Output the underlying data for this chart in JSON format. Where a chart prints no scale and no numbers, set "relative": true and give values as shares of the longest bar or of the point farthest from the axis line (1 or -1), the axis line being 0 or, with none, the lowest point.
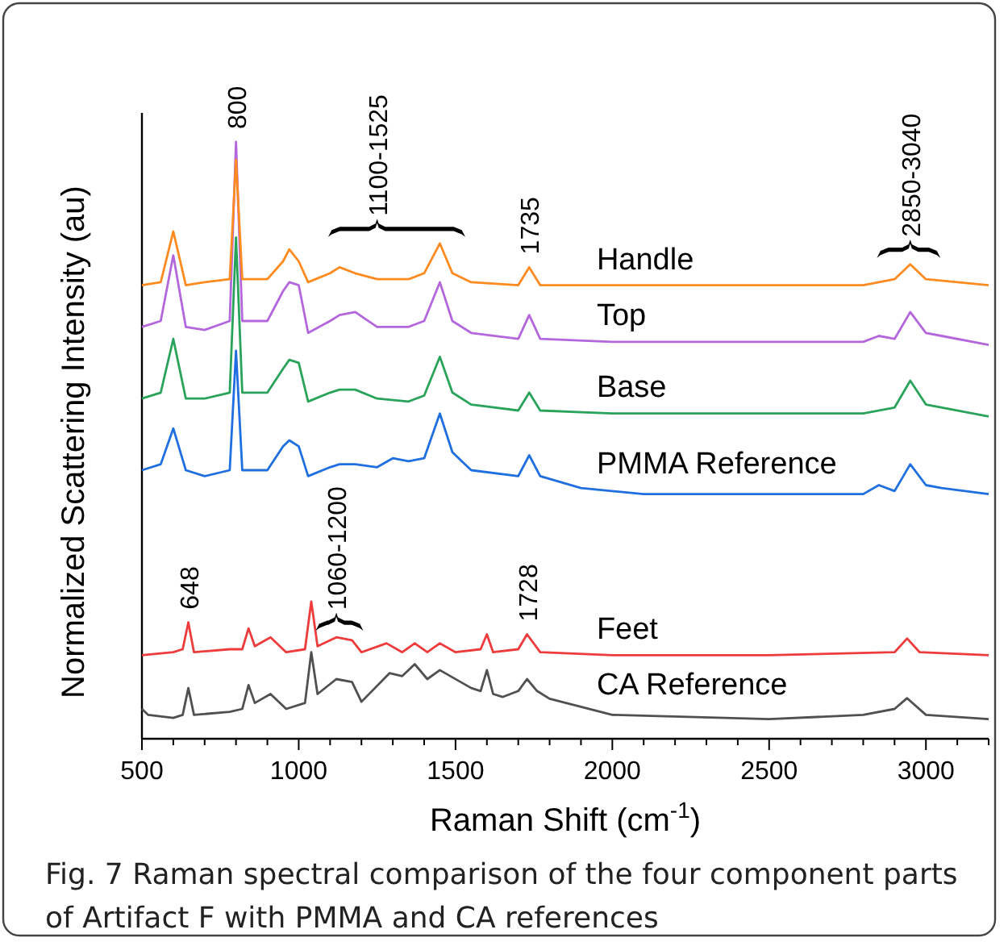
{
  "chart_data": {
    "type": "line",
    "relative": true,
    "xlabel": "Raman Shift (cm$^{-1}$)",
    "ylabel": "Normalized Scattering Intensity (au)",
    "xlim": [
      500,
      3200
    ],
    "xticks": [
      500,
      {
        "value": 600,
        "label": null
      },
      {
        "value": 700,
        "label": null
      },
      {
        "value": 800,
        "label": null
      },
      {
        "value": 900,
        "label": null
      },
      1000,
      {
        "value": 1100,
        "label": null
      },
      {
        "value": 1200,
        "label": null
      },
      {
        "value": 1300,
        "label": null
      },
      {
        "value": 1400,
        "label": null
      },
      1500,
      {
        "value": 1600,
        "label": null
      },
      {
        "value": 1700,
        "label": null
      },
      {
        "value": 1800,
        "label": null
      },
      {
        "value": 1900,
        "label": null
      },
      2000,
      {
        "value": 2100,
        "label": null
      },
      {
        "value": 2200,
        "label": null
      },
      {
        "value": 2300,
        "label": null
      },
      {
        "value": 2400,
        "label": null
      },
      2500,
      {
        "value": 2600,
        "label": null
      },
      {
        "value": 2700,
        "label": null
      },
      {
        "value": 2800,
        "label": null
      },
      {
        "value": 2900,
        "label": null
      },
      3000,
      {
        "value": 3100,
        "label": null
      },
      {
        "value": 3200,
        "label": null
      }
    ],
    "grid": false,
    "legend": false,
    "marker": "none",
    "line_style": "solid",
    "series": [
      {
        "name": "Handle",
        "color": "#ff8a1f",
        "x": [
          500,
          560,
          600,
          640,
          700,
          780,
          800,
          820,
          900,
          950,
          970,
          1000,
          1030,
          1100,
          1130,
          1180,
          1250,
          1350,
          1400,
          1450,
          1490,
          1550,
          1700,
          1735,
          1770,
          2000,
          2500,
          2800,
          2900,
          2950,
          3000,
          3200
        ],
        "values": [
          0.76,
          0.765,
          0.85,
          0.76,
          0.765,
          0.77,
          0.97,
          0.77,
          0.77,
          0.8,
          0.82,
          0.8,
          0.765,
          0.78,
          0.79,
          0.78,
          0.77,
          0.77,
          0.78,
          0.83,
          0.78,
          0.765,
          0.76,
          0.79,
          0.76,
          0.76,
          0.76,
          0.76,
          0.77,
          0.795,
          0.77,
          0.76
        ]
      },
      {
        "name": "Top",
        "color": "#b467dd",
        "x": [
          500,
          560,
          600,
          640,
          700,
          780,
          800,
          820,
          900,
          950,
          970,
          1000,
          1030,
          1100,
          1130,
          1180,
          1250,
          1350,
          1400,
          1450,
          1490,
          1550,
          1700,
          1735,
          1770,
          2000,
          2500,
          2800,
          2850,
          2900,
          2950,
          3000,
          3050,
          3200
        ],
        "values": [
          0.69,
          0.7,
          0.81,
          0.69,
          0.685,
          0.7,
          1.0,
          0.7,
          0.7,
          0.75,
          0.765,
          0.76,
          0.68,
          0.7,
          0.71,
          0.715,
          0.69,
          0.69,
          0.7,
          0.765,
          0.7,
          0.68,
          0.67,
          0.71,
          0.67,
          0.665,
          0.665,
          0.665,
          0.675,
          0.67,
          0.715,
          0.68,
          0.675,
          0.66
        ]
      },
      {
        "name": "Base",
        "color": "#2aa35a",
        "x": [
          500,
          560,
          600,
          640,
          700,
          780,
          800,
          820,
          900,
          950,
          970,
          1000,
          1030,
          1100,
          1130,
          1180,
          1250,
          1350,
          1400,
          1450,
          1490,
          1550,
          1700,
          1735,
          1770,
          2000,
          2500,
          2800,
          2900,
          2950,
          3000,
          3200
        ],
        "values": [
          0.57,
          0.58,
          0.67,
          0.57,
          0.57,
          0.58,
          0.84,
          0.58,
          0.58,
          0.62,
          0.635,
          0.63,
          0.565,
          0.58,
          0.585,
          0.585,
          0.57,
          0.565,
          0.575,
          0.64,
          0.58,
          0.56,
          0.55,
          0.58,
          0.55,
          0.545,
          0.545,
          0.545,
          0.555,
          0.6,
          0.56,
          0.54
        ]
      },
      {
        "name": "PMMA Reference",
        "color": "#1f6fe0",
        "x": [
          500,
          560,
          600,
          640,
          700,
          780,
          800,
          820,
          900,
          950,
          970,
          1000,
          1030,
          1100,
          1130,
          1180,
          1250,
          1300,
          1350,
          1400,
          1450,
          1490,
          1550,
          1700,
          1735,
          1770,
          1900,
          2100,
          2500,
          2800,
          2850,
          2900,
          2950,
          3000,
          3050,
          3200
        ],
        "values": [
          0.45,
          0.46,
          0.52,
          0.45,
          0.44,
          0.45,
          0.65,
          0.45,
          0.45,
          0.49,
          0.5,
          0.49,
          0.44,
          0.455,
          0.46,
          0.46,
          0.455,
          0.47,
          0.465,
          0.47,
          0.545,
          0.48,
          0.45,
          0.44,
          0.475,
          0.44,
          0.42,
          0.41,
          0.41,
          0.41,
          0.425,
          0.415,
          0.46,
          0.425,
          0.42,
          0.41
        ]
      },
      {
        "name": "Feet",
        "color": "#ee3b3b",
        "x": [
          500,
          600,
          630,
          648,
          666,
          780,
          820,
          840,
          860,
          910,
          960,
          1020,
          1040,
          1060,
          1120,
          1170,
          1200,
          1280,
          1330,
          1370,
          1410,
          1450,
          1500,
          1580,
          1600,
          1620,
          1700,
          1728,
          1770,
          2000,
          2500,
          2900,
          2940,
          2980,
          3200
        ],
        "values": [
          0.14,
          0.145,
          0.15,
          0.195,
          0.145,
          0.15,
          0.15,
          0.185,
          0.155,
          0.17,
          0.145,
          0.15,
          0.23,
          0.155,
          0.17,
          0.165,
          0.145,
          0.16,
          0.145,
          0.16,
          0.145,
          0.16,
          0.145,
          0.15,
          0.175,
          0.145,
          0.15,
          0.175,
          0.145,
          0.14,
          0.14,
          0.145,
          0.168,
          0.145,
          0.14
        ]
      },
      {
        "name": "CA Reference",
        "color": "#505050",
        "x": [
          500,
          520,
          600,
          630,
          648,
          666,
          780,
          820,
          840,
          860,
          910,
          960,
          1020,
          1040,
          1060,
          1120,
          1170,
          1200,
          1290,
          1330,
          1370,
          1410,
          1450,
          1550,
          1580,
          1600,
          1620,
          1650,
          1700,
          1728,
          1760,
          1800,
          2000,
          2500,
          2800,
          2900,
          2940,
          3000,
          3200
        ],
        "values": [
          0.05,
          0.04,
          0.035,
          0.04,
          0.085,
          0.04,
          0.045,
          0.05,
          0.09,
          0.06,
          0.075,
          0.05,
          0.06,
          0.145,
          0.075,
          0.1,
          0.095,
          0.062,
          0.11,
          0.105,
          0.125,
          0.1,
          0.115,
          0.085,
          0.08,
          0.115,
          0.075,
          0.07,
          0.08,
          0.1,
          0.08,
          0.067,
          0.04,
          0.033,
          0.04,
          0.05,
          0.068,
          0.04,
          0.033
        ]
      }
    ],
    "annotations": [
      {
        "text": "800",
        "x": 800,
        "y": 1.0
      },
      {
        "text": "1100-1525",
        "x": 1250,
        "y": 0.77
      },
      {
        "text": "1735",
        "x": 1735,
        "y": 0.79
      },
      {
        "text": "2850-3040",
        "x": 2950,
        "y": 0.795
      },
      {
        "text": "648",
        "x": 648,
        "y": 0.195
      },
      {
        "text": "1060-1200",
        "x": 1120,
        "y": 0.17
      },
      {
        "text": "1728",
        "x": 1728,
        "y": 0.175
      },
      "Fig. 7  Raman spectral comparison of the four component parts of Artifact F with PMMA and CA references"
    ]
  }
}
